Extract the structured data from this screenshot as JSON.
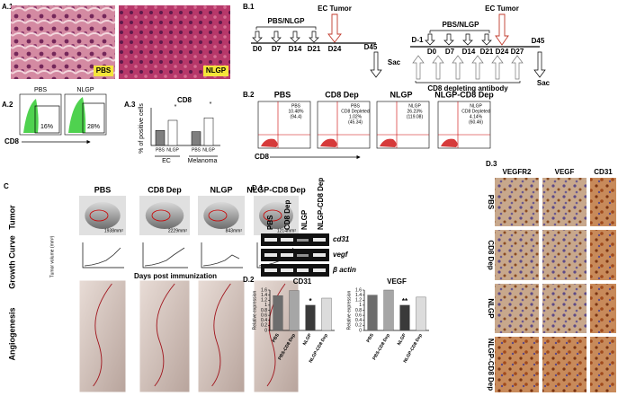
{
  "panel_labels": {
    "a1": "A.1",
    "a2": "A.2",
    "a3": "A.3",
    "b1": "B.1",
    "b2": "B.2",
    "c": "C",
    "d1": "D.1",
    "d2": "D.2",
    "d3": "D.3"
  },
  "a1": {
    "labels": [
      "PBS",
      "NLGP"
    ]
  },
  "a2": {
    "groups": [
      {
        "name": "PBS",
        "percent": "16%"
      },
      {
        "name": "NLGP",
        "percent": "28%"
      }
    ],
    "axis": "CD8"
  },
  "a3": {
    "title": "CD8",
    "y_label": "% of positive cells",
    "categories": [
      "PBS",
      "NLGP",
      "PBS",
      "NLGP"
    ],
    "groups": [
      "EC",
      "Melanoma"
    ],
    "values": [
      1.2,
      2.0,
      1.1,
      2.2
    ],
    "ylim": [
      0,
      3
    ],
    "colors": [
      "#7f7f7f",
      "#ffffff",
      "#7f7f7f",
      "#ffffff"
    ],
    "annotations": [
      "*",
      "*"
    ]
  },
  "b1": {
    "timeline1": {
      "treatment": "PBS/NLGP",
      "tumor": "EC Tumor",
      "days": [
        "D0",
        "D7",
        "D14",
        "D21",
        "D24",
        "D45"
      ],
      "end": "Sac"
    },
    "timeline2": {
      "treatment": "PBS/NLGP",
      "tumor": "EC Tumor",
      "days": [
        "D-1",
        "D0",
        "D7",
        "D14",
        "D21",
        "D24",
        "D27",
        "D45"
      ],
      "antibody": "CD8 depleting antibody",
      "end": "Sac"
    }
  },
  "b2": {
    "plots": [
      {
        "title": "PBS",
        "lines": [
          "PBS",
          "10.48%",
          "(94.4)"
        ]
      },
      {
        "title": "CD8 Dep",
        "lines": [
          "PBS",
          "CD8 Depleted",
          "1.02%",
          "(45.34)"
        ]
      },
      {
        "title": "NLGP",
        "lines": [
          "NLGP",
          "26.23%",
          "(119.08)"
        ]
      },
      {
        "title": "NLGP-CD8 Dep",
        "lines": [
          "NLGP",
          "CD8 Depleted",
          "4.14%",
          "(60.46)"
        ]
      }
    ],
    "axis": "CD8"
  },
  "c": {
    "columns": [
      "PBS",
      "CD8 Dep",
      "NLGP",
      "NLGP-CD8 Dep"
    ],
    "rows": [
      "Tumor",
      "Growth Curve",
      "Angiogenesis"
    ],
    "tumor_sizes": [
      "1938mm²",
      "2229mm²",
      "843mm²",
      "1214mm²"
    ],
    "y_label": "Tumor volume (mm³)",
    "x_label": "Days post immunization"
  },
  "d1": {
    "columns": [
      "PBS",
      "CD8 Dep",
      "NLGP",
      "NLGP-CD8 Dep"
    ],
    "bands": [
      "cd31",
      "vegf",
      "β actin"
    ]
  },
  "d2": {
    "charts": [
      {
        "title": "CD31",
        "y_label": "Relative expression",
        "categories": [
          "PBS",
          "PBS-CD8 Dep",
          "NLGP",
          "NLGP-CD8 Dep"
        ],
        "values": [
          1.38,
          1.58,
          1.0,
          1.28
        ],
        "ylim": [
          0,
          1.6
        ],
        "yticks": [
          0,
          0.2,
          0.4,
          0.6,
          0.8,
          1,
          1.2,
          1.4,
          1.6
        ],
        "colors": [
          "#6d6d6d",
          "#a6a6a6",
          "#3a3a3a",
          "#dcdcdc"
        ],
        "annotation": "*"
      },
      {
        "title": "VEGF",
        "y_label": "Relative expression",
        "categories": [
          "PBS",
          "PBS-CD8 Dep",
          "NLGP",
          "NLGP-CD8 Dep"
        ],
        "values": [
          1.4,
          1.6,
          1.0,
          1.32
        ],
        "ylim": [
          0,
          1.6
        ],
        "yticks": [
          0,
          0.2,
          0.4,
          0.6,
          0.8,
          1,
          1.2,
          1.4,
          1.6
        ],
        "colors": [
          "#6d6d6d",
          "#a6a6a6",
          "#3a3a3a",
          "#dcdcdc"
        ],
        "annotation": "**"
      }
    ]
  },
  "d3": {
    "columns": [
      "VEGFR2",
      "VEGF",
      "CD31"
    ],
    "rows": [
      "PBS",
      "CD8 Dep",
      "NLGP",
      "NLGP-CD8 Dep"
    ]
  }
}
